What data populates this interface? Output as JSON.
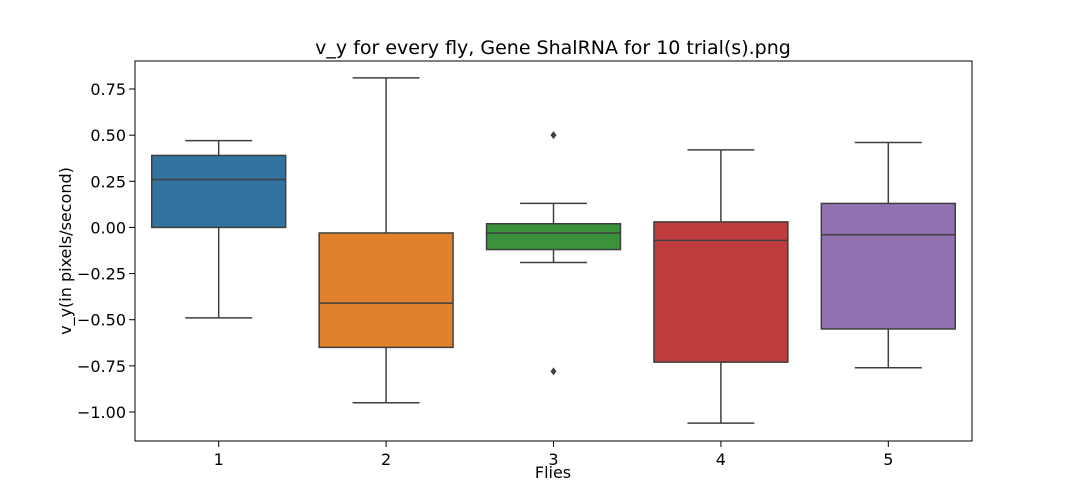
{
  "chart_data": {
    "type": "box",
    "title": "v_y for every fly, Gene ShalRNA for 10 trial(s).png",
    "xlabel": "Flies",
    "ylabel": "v_y(in pixels/second)",
    "ylim": [
      -1.15,
      0.9
    ],
    "yticks": [
      0.75,
      0.5,
      0.25,
      0.0,
      -0.25,
      -0.5,
      -0.75,
      -1.0
    ],
    "ytick_labels": [
      "0.75",
      "0.50",
      "0.25",
      "0.00",
      "−0.25",
      "−0.50",
      "−0.75",
      "−1.00"
    ],
    "categories": [
      "1",
      "2",
      "3",
      "4",
      "5"
    ],
    "grid": false,
    "boxes": [
      {
        "category": "1",
        "whisker_low": -0.49,
        "q1": 0.0,
        "median": 0.26,
        "q3": 0.39,
        "whisker_high": 0.47,
        "fliers": [],
        "color": "#3274a1"
      },
      {
        "category": "2",
        "whisker_low": -0.95,
        "q1": -0.65,
        "median": -0.41,
        "q3": -0.03,
        "whisker_high": 0.81,
        "fliers": [],
        "color": "#e1812c"
      },
      {
        "category": "3",
        "whisker_low": -0.19,
        "q1": -0.12,
        "median": -0.03,
        "q3": 0.02,
        "whisker_high": 0.13,
        "fliers": [
          0.5,
          -0.78
        ],
        "color": "#3a923a"
      },
      {
        "category": "4",
        "whisker_low": -1.06,
        "q1": -0.73,
        "median": -0.07,
        "q3": 0.03,
        "whisker_high": 0.42,
        "fliers": [],
        "color": "#c03d3e"
      },
      {
        "category": "5",
        "whisker_low": -0.76,
        "q1": -0.55,
        "median": -0.04,
        "q3": 0.13,
        "whisker_high": 0.46,
        "fliers": [],
        "color": "#9372b2"
      }
    ]
  }
}
